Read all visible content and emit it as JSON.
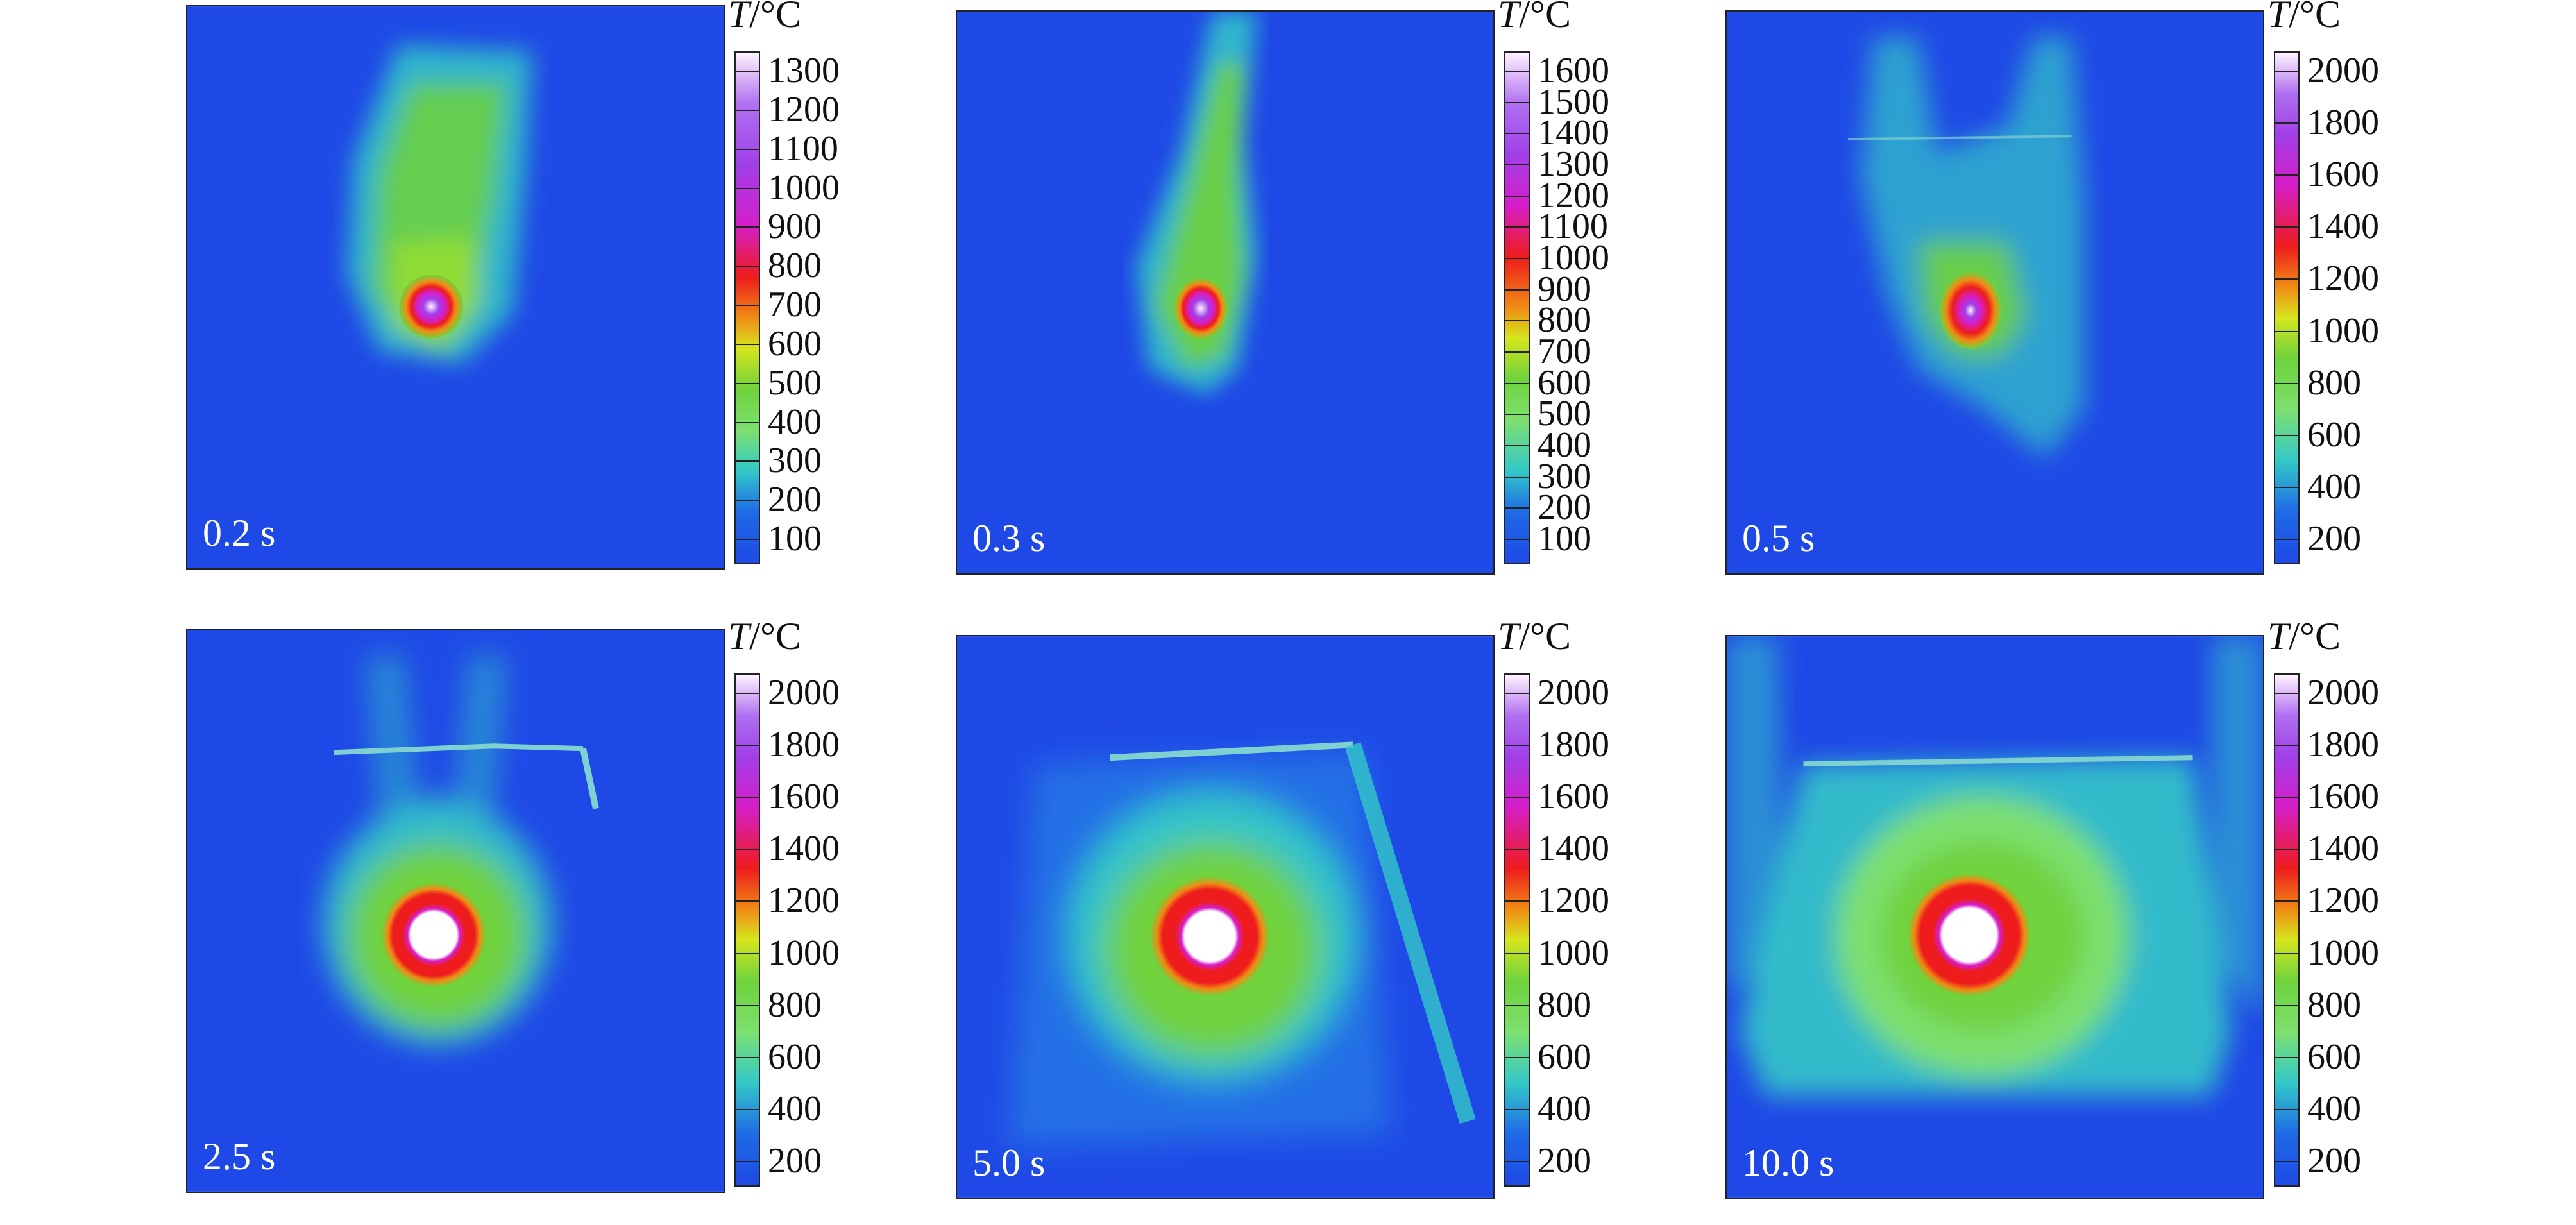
{
  "panels": [
    {
      "time": "0.2 s",
      "scale": {
        "title_unit": "/°C",
        "title_var": "T",
        "ticks": [
          "1300",
          "1200",
          "1100",
          "1000",
          "900",
          "800",
          "700",
          "600",
          "500",
          "400",
          "300",
          "200",
          "100"
        ]
      }
    },
    {
      "time": "0.3 s",
      "scale": {
        "title_unit": "/°C",
        "title_var": "T",
        "ticks": [
          "1600",
          "1500",
          "1400",
          "1300",
          "1200",
          "1100",
          "1000",
          "900",
          "800",
          "700",
          "600",
          "500",
          "400",
          "300",
          "200",
          "100"
        ]
      }
    },
    {
      "time": "0.5 s",
      "scale": {
        "title_unit": "/°C",
        "title_var": "T",
        "ticks": [
          "2000",
          "1800",
          "1600",
          "1400",
          "1200",
          "1000",
          "800",
          "600",
          "400",
          "200"
        ]
      }
    },
    {
      "time": "2.5 s",
      "scale": {
        "title_unit": "/°C",
        "title_var": "T",
        "ticks": [
          "2000",
          "1800",
          "1600",
          "1400",
          "1200",
          "1000",
          "800",
          "600",
          "400",
          "200"
        ]
      }
    },
    {
      "time": "5.0 s",
      "scale": {
        "title_unit": "/°C",
        "title_var": "T",
        "ticks": [
          "2000",
          "1800",
          "1600",
          "1400",
          "1200",
          "1000",
          "800",
          "600",
          "400",
          "200"
        ]
      }
    },
    {
      "time": "10.0 s",
      "scale": {
        "title_unit": "/°C",
        "title_var": "T",
        "ticks": [
          "2000",
          "1800",
          "1600",
          "1400",
          "1200",
          "1000",
          "800",
          "600",
          "400",
          "200"
        ]
      }
    }
  ],
  "colors": {
    "background_cold": "#1f49e6",
    "cyan": "#33c8c8",
    "green": "#6fd23c",
    "yellow": "#d6e61e",
    "orange": "#f08c14",
    "red": "#ee1c1c",
    "magenta": "#d61ec8",
    "purple": "#a040e8",
    "hot_white": "#fff8ff"
  }
}
